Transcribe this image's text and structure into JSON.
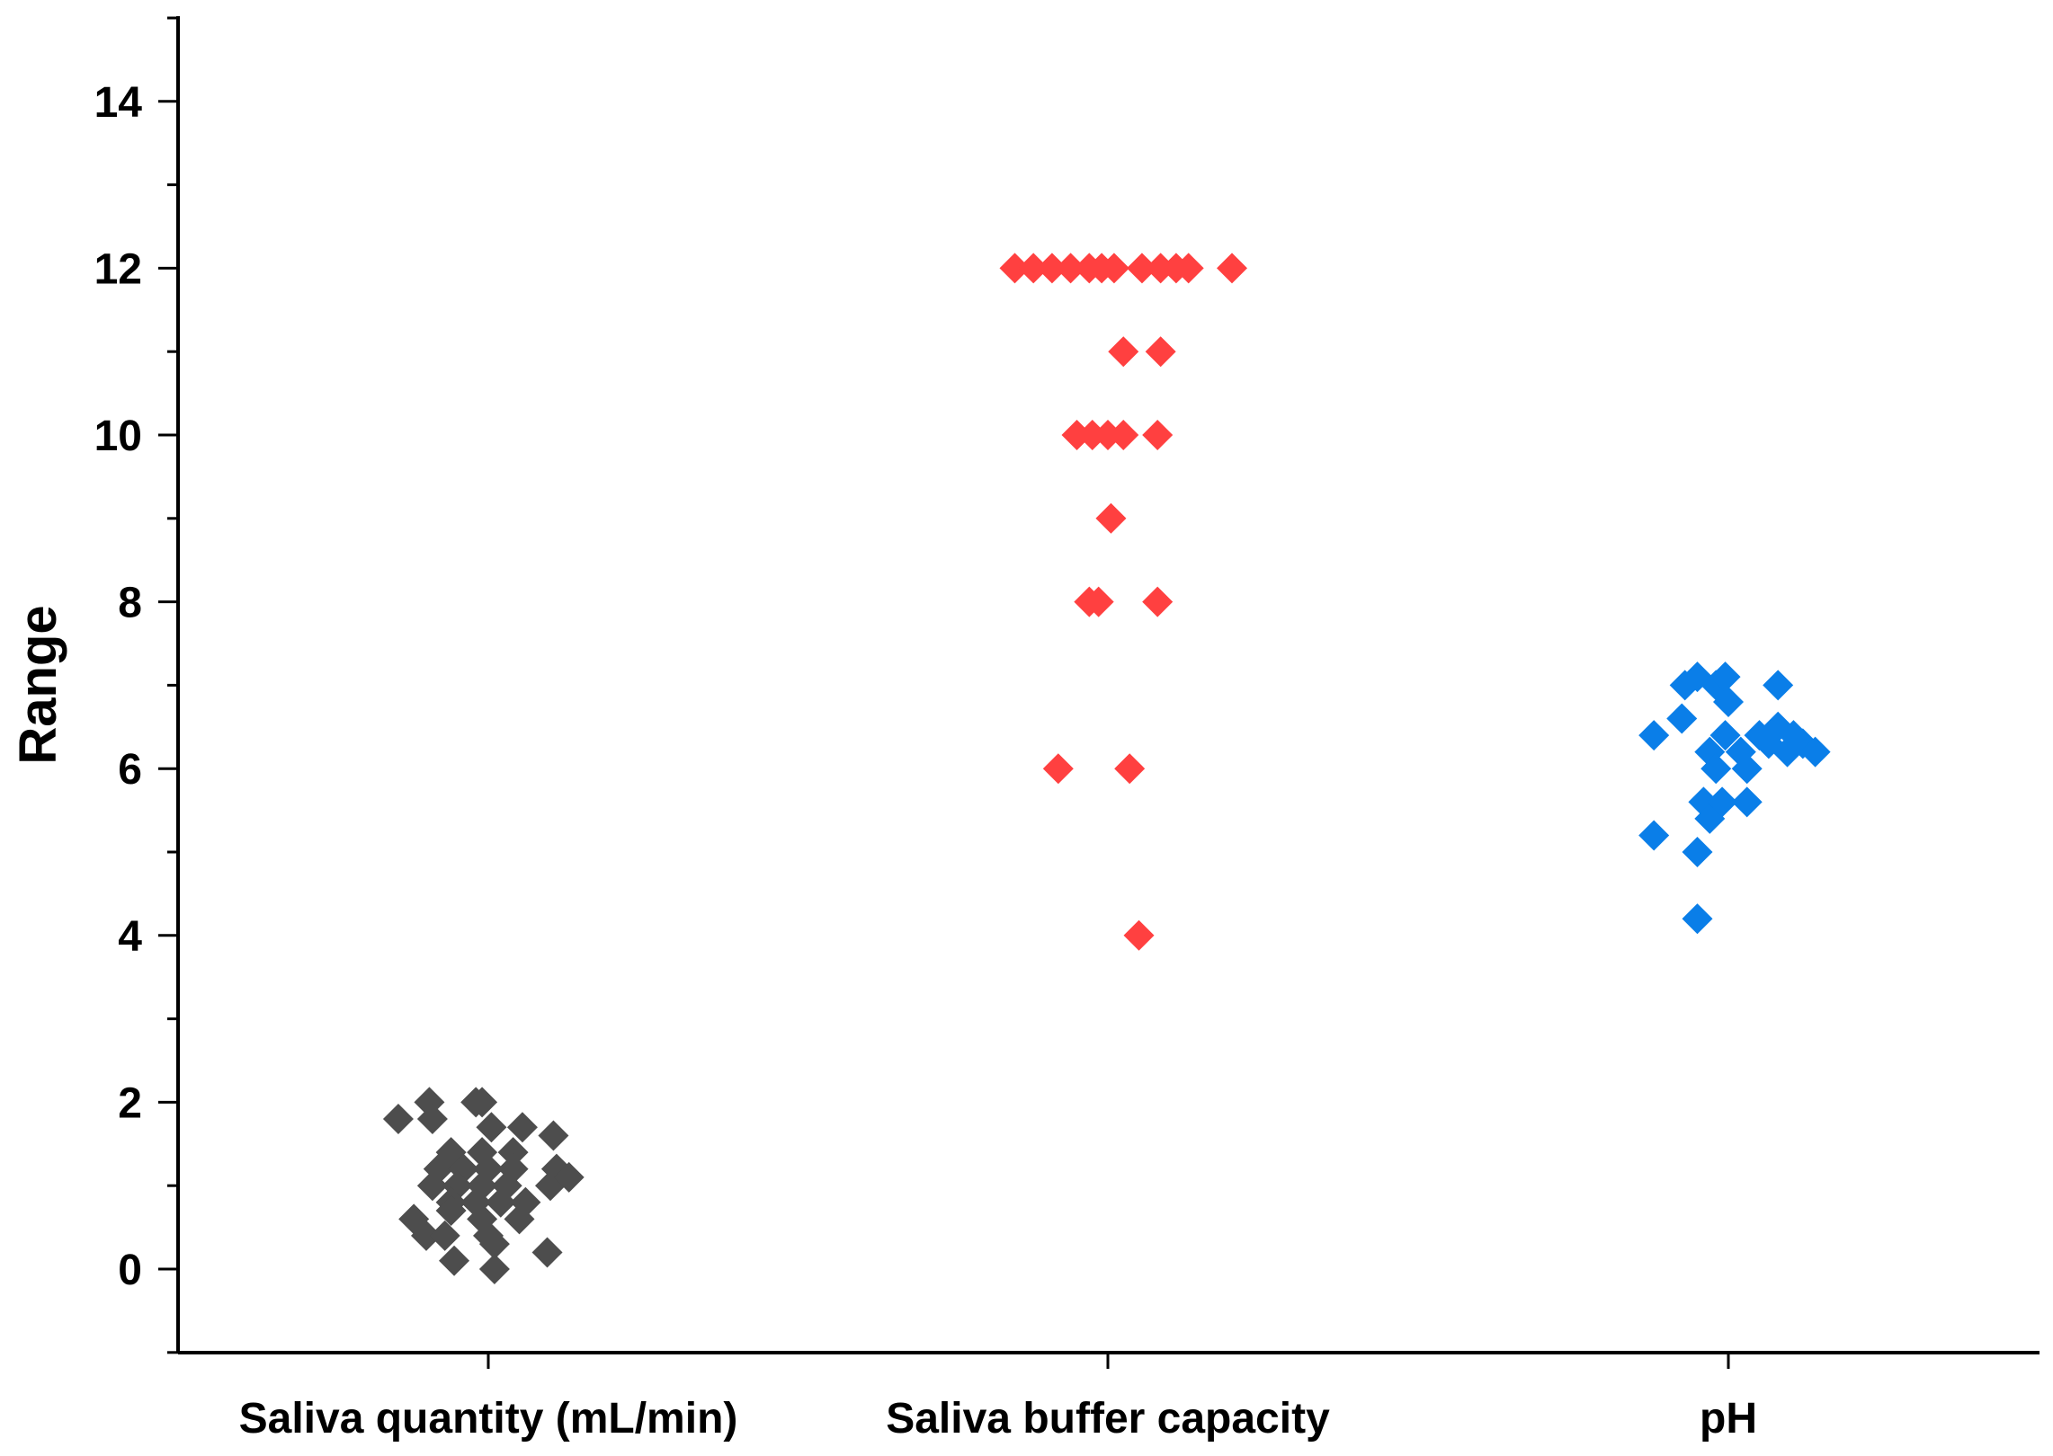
{
  "chart_data": {
    "type": "scatter",
    "title": "",
    "xlabel": "",
    "ylabel": "Range",
    "ylim": [
      -1,
      15
    ],
    "yticks": [
      0,
      2,
      4,
      6,
      8,
      10,
      12,
      14
    ],
    "categories": [
      "Saliva quantity (mL/min)",
      "Saliva buffer capacity",
      "pH"
    ],
    "grid": false,
    "legend": "none",
    "marker": "diamond",
    "series": [
      {
        "category": "Saliva quantity (mL/min)",
        "color": "#4d4d4d",
        "points": [
          {
            "offset": -0.145,
            "y": 1.8
          },
          {
            "offset": -0.095,
            "y": 2.0
          },
          {
            "offset": -0.09,
            "y": 1.8
          },
          {
            "offset": -0.02,
            "y": 2.0
          },
          {
            "offset": -0.01,
            "y": 2.0
          },
          {
            "offset": 0.005,
            "y": 1.7
          },
          {
            "offset": 0.055,
            "y": 1.7
          },
          {
            "offset": 0.105,
            "y": 1.6
          },
          {
            "offset": -0.06,
            "y": 1.4
          },
          {
            "offset": -0.01,
            "y": 1.4
          },
          {
            "offset": 0.04,
            "y": 1.4
          },
          {
            "offset": -0.08,
            "y": 1.2
          },
          {
            "offset": -0.04,
            "y": 1.2
          },
          {
            "offset": 0.0,
            "y": 1.2
          },
          {
            "offset": 0.04,
            "y": 1.2
          },
          {
            "offset": 0.11,
            "y": 1.2
          },
          {
            "offset": -0.09,
            "y": 1.0
          },
          {
            "offset": -0.05,
            "y": 1.0
          },
          {
            "offset": -0.01,
            "y": 1.0
          },
          {
            "offset": 0.03,
            "y": 1.0
          },
          {
            "offset": 0.1,
            "y": 1.0
          },
          {
            "offset": 0.13,
            "y": 1.1
          },
          {
            "offset": -0.06,
            "y": 0.8
          },
          {
            "offset": -0.02,
            "y": 0.8
          },
          {
            "offset": 0.02,
            "y": 0.8
          },
          {
            "offset": 0.06,
            "y": 0.8
          },
          {
            "offset": -0.12,
            "y": 0.6
          },
          {
            "offset": -0.06,
            "y": 0.7
          },
          {
            "offset": -0.01,
            "y": 0.6
          },
          {
            "offset": 0.05,
            "y": 0.6
          },
          {
            "offset": -0.1,
            "y": 0.4
          },
          {
            "offset": -0.07,
            "y": 0.4
          },
          {
            "offset": 0.0,
            "y": 0.4
          },
          {
            "offset": 0.01,
            "y": 0.3
          },
          {
            "offset": -0.055,
            "y": 0.1
          },
          {
            "offset": 0.095,
            "y": 0.2
          },
          {
            "offset": 0.01,
            "y": 0.0
          }
        ]
      },
      {
        "category": "Saliva buffer capacity",
        "color": "#ff4040",
        "points": [
          {
            "offset": -0.15,
            "y": 12
          },
          {
            "offset": -0.12,
            "y": 12
          },
          {
            "offset": -0.09,
            "y": 12
          },
          {
            "offset": -0.06,
            "y": 12
          },
          {
            "offset": -0.03,
            "y": 12
          },
          {
            "offset": -0.01,
            "y": 12
          },
          {
            "offset": 0.01,
            "y": 12
          },
          {
            "offset": 0.055,
            "y": 12
          },
          {
            "offset": 0.085,
            "y": 12
          },
          {
            "offset": 0.11,
            "y": 12
          },
          {
            "offset": 0.13,
            "y": 12
          },
          {
            "offset": 0.2,
            "y": 12
          },
          {
            "offset": 0.025,
            "y": 11
          },
          {
            "offset": 0.085,
            "y": 11
          },
          {
            "offset": -0.05,
            "y": 10
          },
          {
            "offset": -0.025,
            "y": 10
          },
          {
            "offset": 0.0,
            "y": 10
          },
          {
            "offset": 0.025,
            "y": 10
          },
          {
            "offset": 0.08,
            "y": 10
          },
          {
            "offset": 0.005,
            "y": 9
          },
          {
            "offset": -0.03,
            "y": 8
          },
          {
            "offset": -0.015,
            "y": 8
          },
          {
            "offset": 0.08,
            "y": 8
          },
          {
            "offset": -0.08,
            "y": 6
          },
          {
            "offset": 0.035,
            "y": 6
          },
          {
            "offset": 0.05,
            "y": 4
          }
        ]
      },
      {
        "category": "pH",
        "color": "#0a7ee8",
        "points": [
          {
            "offset": -0.07,
            "y": 7.0
          },
          {
            "offset": -0.05,
            "y": 7.1
          },
          {
            "offset": -0.02,
            "y": 7.0
          },
          {
            "offset": -0.005,
            "y": 7.1
          },
          {
            "offset": 0.0,
            "y": 6.8
          },
          {
            "offset": 0.08,
            "y": 7.0
          },
          {
            "offset": -0.12,
            "y": 6.4
          },
          {
            "offset": -0.075,
            "y": 6.6
          },
          {
            "offset": -0.03,
            "y": 6.2
          },
          {
            "offset": -0.02,
            "y": 6.0
          },
          {
            "offset": -0.005,
            "y": 6.4
          },
          {
            "offset": 0.02,
            "y": 6.2
          },
          {
            "offset": 0.03,
            "y": 6.0
          },
          {
            "offset": 0.05,
            "y": 6.4
          },
          {
            "offset": 0.065,
            "y": 6.3
          },
          {
            "offset": 0.08,
            "y": 6.5
          },
          {
            "offset": 0.095,
            "y": 6.2
          },
          {
            "offset": 0.105,
            "y": 6.4
          },
          {
            "offset": 0.12,
            "y": 6.3
          },
          {
            "offset": 0.14,
            "y": 6.2
          },
          {
            "offset": -0.04,
            "y": 5.6
          },
          {
            "offset": -0.03,
            "y": 5.4
          },
          {
            "offset": -0.01,
            "y": 5.6
          },
          {
            "offset": 0.03,
            "y": 5.6
          },
          {
            "offset": -0.12,
            "y": 5.2
          },
          {
            "offset": -0.05,
            "y": 5.0
          },
          {
            "offset": -0.05,
            "y": 4.2
          }
        ]
      }
    ]
  }
}
